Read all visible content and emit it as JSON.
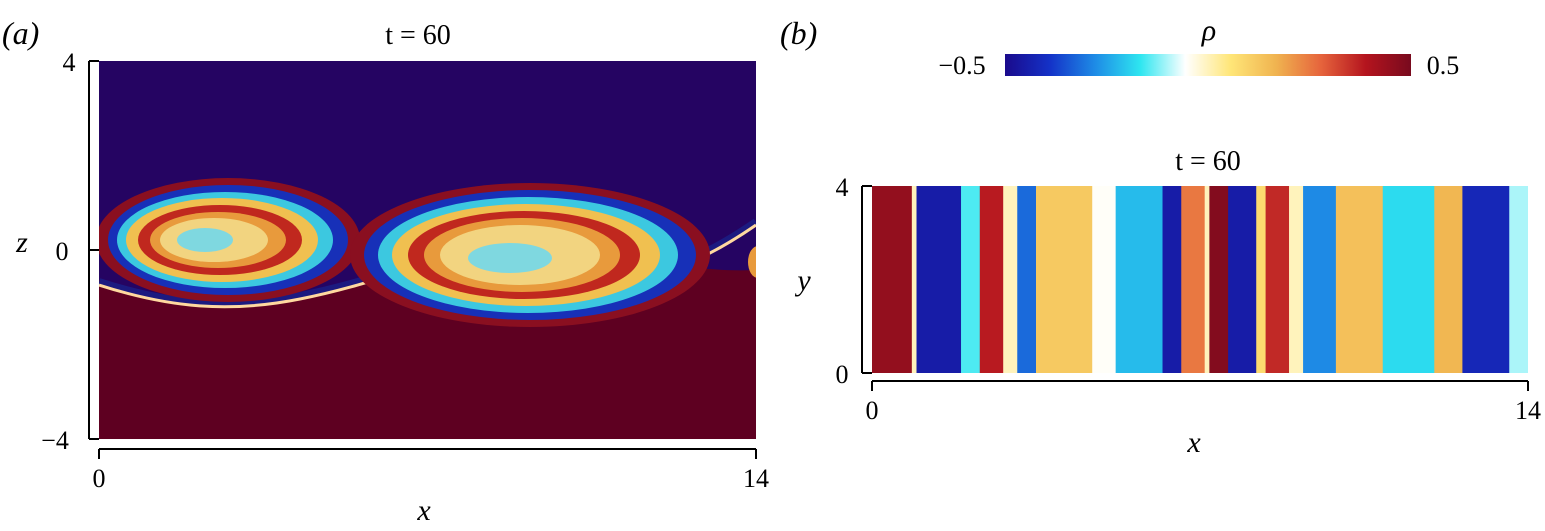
{
  "colorbar": {
    "label": "ρ",
    "min_label": "−0.5",
    "max_label": "0.5",
    "range": [
      -0.5,
      0.5
    ],
    "colormap": [
      "#1a0a8c",
      "#1432c8",
      "#1e8ce6",
      "#2ee6f0",
      "#ffffff",
      "#ffe678",
      "#f0b450",
      "#e6643c",
      "#b4141e",
      "#780a1e"
    ]
  },
  "chart_data": [
    {
      "type": "heatmap",
      "panel_label": "(a)",
      "title": "t = 60",
      "xlabel": "x",
      "ylabel": "z",
      "xlim": [
        0,
        14
      ],
      "ylim": [
        -4,
        4
      ],
      "x_ticks": [
        "0",
        "14"
      ],
      "y_ticks": [
        "4",
        "0",
        "−4"
      ],
      "field": "ρ",
      "regions": [
        {
          "name": "upper layer",
          "value": -0.5,
          "color": "#250462"
        },
        {
          "name": "lower layer",
          "value": 0.5,
          "color": "#5e0021"
        }
      ],
      "vortices": [
        {
          "center": [
            3,
            0
          ],
          "count": 1
        },
        {
          "center": [
            10,
            0
          ],
          "count": 1
        }
      ]
    },
    {
      "type": "heatmap",
      "panel_label": "(b)",
      "title": "t = 60",
      "xlabel": "x",
      "ylabel": "y",
      "xlim": [
        0,
        14
      ],
      "ylim": [
        0,
        4
      ],
      "x_ticks": [
        "0",
        "14"
      ],
      "y_ticks": [
        "4",
        "0"
      ],
      "field": "ρ",
      "stripes": [
        {
          "x0": 0.0,
          "x1": 0.85,
          "value": 0.45
        },
        {
          "x0": 0.85,
          "x1": 0.95,
          "value": 0.0
        },
        {
          "x0": 0.95,
          "x1": 1.9,
          "value": -0.45
        },
        {
          "x0": 1.9,
          "x1": 2.3,
          "value": -0.15
        },
        {
          "x0": 2.3,
          "x1": 2.8,
          "value": 0.38
        },
        {
          "x0": 2.8,
          "x1": 3.1,
          "value": 0.0
        },
        {
          "x0": 3.1,
          "x1": 3.5,
          "value": -0.32
        },
        {
          "x0": 3.5,
          "x1": 4.7,
          "value": 0.12
        },
        {
          "x0": 4.7,
          "x1": 5.2,
          "value": -0.05
        },
        {
          "x0": 5.2,
          "x1": 6.2,
          "value": -0.22
        },
        {
          "x0": 6.2,
          "x1": 6.6,
          "value": -0.45
        },
        {
          "x0": 6.6,
          "x1": 7.1,
          "value": 0.25
        },
        {
          "x0": 7.1,
          "x1": 7.2,
          "value": 0.0
        },
        {
          "x0": 7.2,
          "x1": 7.6,
          "value": 0.48
        },
        {
          "x0": 7.6,
          "x1": 8.2,
          "value": -0.45
        },
        {
          "x0": 8.2,
          "x1": 8.4,
          "value": 0.08
        },
        {
          "x0": 8.4,
          "x1": 8.9,
          "value": 0.36
        },
        {
          "x0": 8.9,
          "x1": 9.2,
          "value": 0.0
        },
        {
          "x0": 9.2,
          "x1": 9.9,
          "value": -0.28
        },
        {
          "x0": 9.9,
          "x1": 10.9,
          "value": 0.14
        },
        {
          "x0": 10.9,
          "x1": 12.0,
          "value": -0.18
        },
        {
          "x0": 12.0,
          "x1": 12.6,
          "value": 0.16
        },
        {
          "x0": 12.6,
          "x1": 13.6,
          "value": -0.42
        },
        {
          "x0": 13.6,
          "x1": 14.0,
          "value": -0.1
        }
      ]
    }
  ]
}
